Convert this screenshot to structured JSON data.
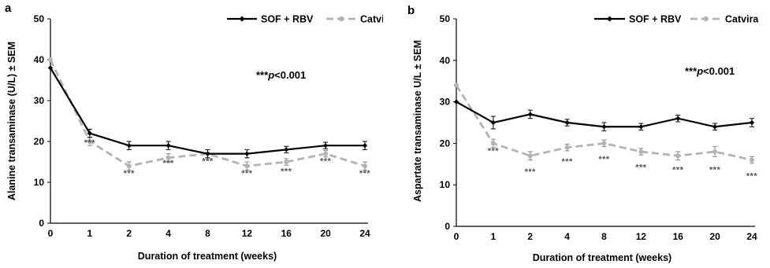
{
  "chart_data": [
    {
      "type": "line",
      "panel_label": "a",
      "xlabel": "Duration of treatment (weeks)",
      "ylabel": "Alanine transaminase (U/L) ± SEM",
      "categories": [
        "0",
        "1",
        "2",
        "4",
        "8",
        "12",
        "16",
        "20",
        "24"
      ],
      "ylim": [
        0,
        50
      ],
      "yticks": [
        0,
        10,
        20,
        30,
        40,
        50
      ],
      "grid": false,
      "legend_position": "top-right",
      "significance_label": "***p<0.001",
      "series": [
        {
          "name": "SOF + RBV",
          "color": "#000000",
          "dashed": false,
          "marker": "diamond",
          "values": [
            38,
            22,
            19,
            19,
            17,
            17,
            18,
            19,
            19
          ],
          "errors": [
            0,
            1,
            1,
            1,
            1,
            1,
            0.8,
            0.8,
            1
          ]
        },
        {
          "name": "Catvira",
          "color": "#b3b3b3",
          "dashed": true,
          "marker": "circle",
          "values": [
            40,
            20,
            14,
            16,
            17,
            14,
            15,
            17,
            14
          ],
          "errors": [
            0,
            1,
            1,
            1,
            1,
            1,
            0.8,
            0.8,
            1
          ]
        }
      ],
      "annotations": [
        "***",
        "***",
        "***",
        "***",
        "***",
        "***",
        "***",
        "***"
      ],
      "annotation_y": [
        19,
        11.5,
        14,
        14.5,
        11.5,
        12,
        14.5,
        11.5
      ]
    },
    {
      "type": "line",
      "panel_label": "b",
      "xlabel": "Duration of treatment (weeks)",
      "ylabel": "Aspartate transaminase U/L ± SEM",
      "categories": [
        "0",
        "1",
        "2",
        "4",
        "8",
        "12",
        "16",
        "20",
        "24"
      ],
      "ylim": [
        0,
        50
      ],
      "yticks": [
        0,
        10,
        20,
        30,
        40,
        50
      ],
      "grid": false,
      "legend_position": "top-right",
      "significance_label": "***p<0.001",
      "series": [
        {
          "name": "SOF + RBV",
          "color": "#000000",
          "dashed": false,
          "marker": "diamond",
          "values": [
            30,
            25,
            27,
            25,
            24,
            24,
            26,
            24,
            25
          ],
          "errors": [
            0,
            1.5,
            1,
            0.8,
            1,
            0.8,
            0.8,
            0.8,
            1
          ]
        },
        {
          "name": "Catvira",
          "color": "#b3b3b3",
          "dashed": true,
          "marker": "circle",
          "values": [
            34,
            20,
            17,
            19,
            20,
            18,
            17,
            18,
            16
          ],
          "errors": [
            0,
            1,
            1,
            0.8,
            0.8,
            0.8,
            1,
            1.2,
            0.8
          ]
        }
      ],
      "annotations": [
        "***",
        "***",
        "***",
        "***",
        "***",
        "***",
        "***",
        "***"
      ],
      "annotation_y": [
        17.5,
        12.5,
        15,
        15.5,
        13.5,
        13,
        13,
        11.5
      ]
    }
  ]
}
